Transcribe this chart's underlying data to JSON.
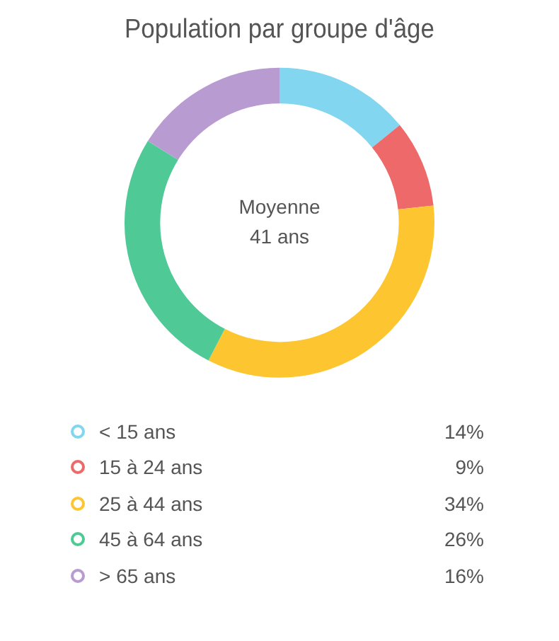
{
  "chart_data": {
    "type": "donut",
    "title": "Population par groupe d'âge",
    "categories": [
      "< 15 ans",
      "15 à 24 ans",
      "25 à 44 ans",
      "45 à 64 ans",
      "> 65 ans"
    ],
    "values": [
      14,
      9,
      34,
      26,
      16
    ],
    "colors": [
      "#82d6f0",
      "#ee6a6a",
      "#fdc530",
      "#4fca96",
      "#b89bd0"
    ],
    "annotations": [
      "Moyenne",
      "41 ans"
    ],
    "value_labels": [
      "14%",
      "9%",
      "34%",
      "26%",
      "16%"
    ],
    "legend": "bottom"
  }
}
